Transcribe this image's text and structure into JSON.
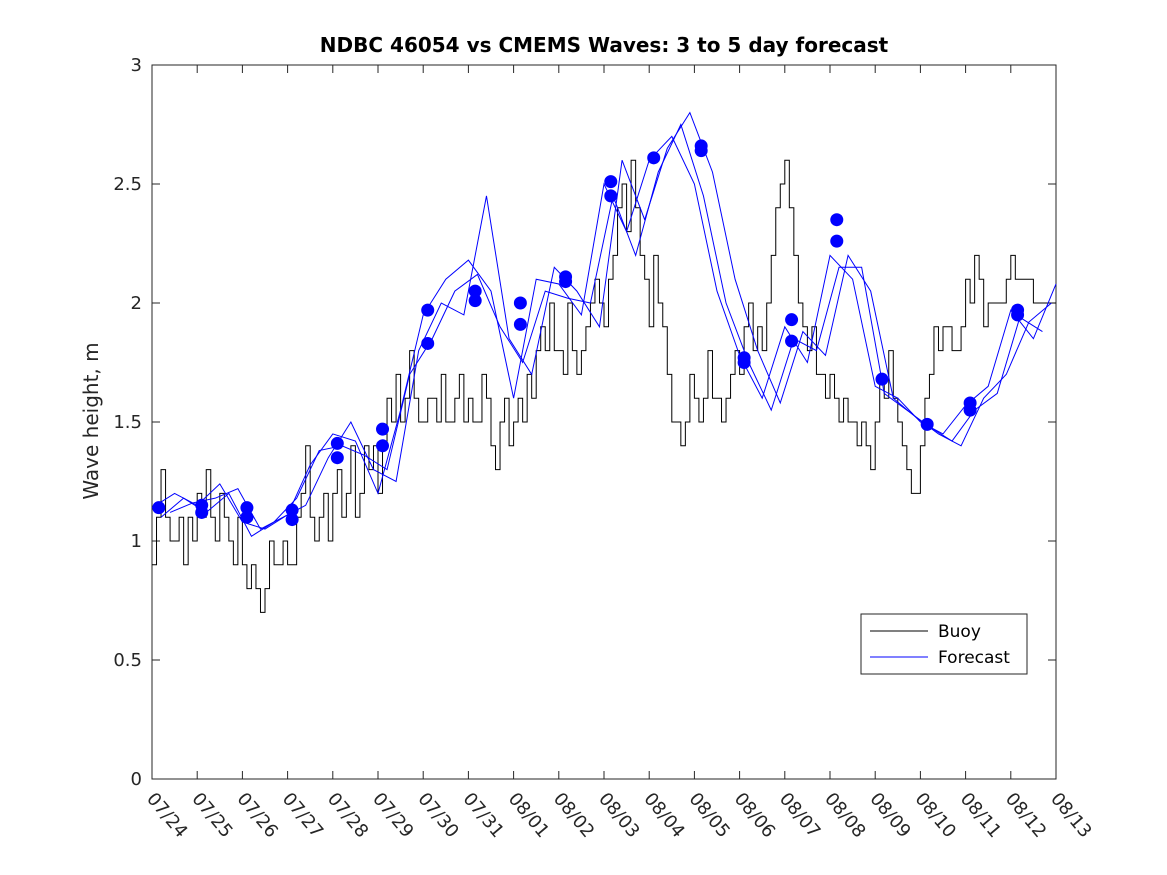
{
  "chart_data": {
    "type": "line",
    "title": "NDBC 46054 vs CMEMS Waves: 3 to 5 day forecast",
    "xlabel": "",
    "ylabel": "Wave height, m",
    "x_ticks": [
      "07/24",
      "07/25",
      "07/26",
      "07/27",
      "07/28",
      "07/29",
      "07/30",
      "07/31",
      "08/01",
      "08/02",
      "08/03",
      "08/04",
      "08/05",
      "08/06",
      "08/07",
      "08/08",
      "08/09",
      "08/10",
      "08/11",
      "08/12",
      "08/13"
    ],
    "xlim": [
      "07/24",
      "08/13"
    ],
    "ylim": [
      0,
      3
    ],
    "y_ticks": [
      "0",
      "0.5",
      "1",
      "1.5",
      "2",
      "2.5",
      "3"
    ],
    "legend": {
      "position": "lower-right",
      "entries": [
        "Buoy",
        "Forecast"
      ]
    },
    "colors": {
      "buoy": "#000000",
      "forecast": "#0000ff"
    },
    "series": [
      {
        "name": "Buoy",
        "step": true,
        "x": [
          0,
          0.1,
          0.2,
          0.3,
          0.4,
          0.5,
          0.6,
          0.7,
          0.8,
          0.9,
          1.0,
          1.1,
          1.2,
          1.3,
          1.4,
          1.5,
          1.6,
          1.7,
          1.8,
          1.9,
          2.0,
          2.1,
          2.2,
          2.3,
          2.4,
          2.5,
          2.6,
          2.7,
          2.8,
          2.9,
          3.0,
          3.1,
          3.2,
          3.3,
          3.4,
          3.5,
          3.6,
          3.7,
          3.8,
          3.9,
          4.0,
          4.1,
          4.2,
          4.3,
          4.4,
          4.5,
          4.6,
          4.7,
          4.8,
          4.9,
          5.0,
          5.1,
          5.2,
          5.3,
          5.4,
          5.5,
          5.6,
          5.7,
          5.8,
          5.9,
          6.0,
          6.1,
          6.2,
          6.3,
          6.4,
          6.5,
          6.6,
          6.7,
          6.8,
          6.9,
          7.0,
          7.1,
          7.2,
          7.3,
          7.4,
          7.5,
          7.6,
          7.7,
          7.8,
          7.9,
          8.0,
          8.1,
          8.2,
          8.3,
          8.4,
          8.5,
          8.6,
          8.7,
          8.8,
          8.9,
          9.0,
          9.1,
          9.2,
          9.3,
          9.4,
          9.5,
          9.6,
          9.7,
          9.8,
          9.9,
          10.0,
          10.1,
          10.2,
          10.3,
          10.4,
          10.5,
          10.6,
          10.7,
          10.8,
          10.9,
          11.0,
          11.1,
          11.2,
          11.3,
          11.4,
          11.5,
          11.6,
          11.7,
          11.8,
          11.9,
          12.0,
          12.1,
          12.2,
          12.3,
          12.4,
          12.5,
          12.6,
          12.7,
          12.8,
          12.9,
          13.0,
          13.1,
          13.2,
          13.3,
          13.4,
          13.5,
          13.6,
          13.7,
          13.8,
          13.9,
          14.0,
          14.1,
          14.2,
          14.3,
          14.4,
          14.5,
          14.6,
          14.7,
          14.8,
          14.9,
          15.0,
          15.1,
          15.2,
          15.3,
          15.4,
          15.5,
          15.6,
          15.7,
          15.8,
          15.9,
          16.0,
          16.1,
          16.2,
          16.3,
          16.4,
          16.5,
          16.6,
          16.7,
          16.8,
          16.9,
          17.0,
          17.1,
          17.2,
          17.3,
          17.4,
          17.5,
          17.6,
          17.7,
          17.8,
          17.9,
          18.0,
          18.1,
          18.2,
          18.3,
          18.4,
          18.5,
          18.6,
          18.7,
          18.8,
          18.9,
          19.0,
          19.1,
          19.2,
          19.3,
          19.4,
          19.5,
          19.6,
          19.7,
          19.8,
          19.9,
          20.0
        ],
        "values": [
          0.9,
          1.1,
          1.3,
          1.1,
          1.0,
          1.0,
          1.1,
          0.9,
          1.1,
          1.0,
          1.2,
          1.1,
          1.3,
          1.1,
          1.0,
          1.2,
          1.1,
          1.0,
          0.9,
          1.1,
          0.9,
          0.8,
          0.9,
          0.8,
          0.7,
          0.8,
          1.0,
          0.9,
          0.9,
          1.0,
          0.9,
          0.9,
          1.1,
          1.2,
          1.4,
          1.1,
          1.0,
          1.1,
          1.2,
          1.0,
          1.2,
          1.3,
          1.1,
          1.2,
          1.4,
          1.1,
          1.2,
          1.4,
          1.3,
          1.4,
          1.2,
          1.4,
          1.6,
          1.5,
          1.7,
          1.5,
          1.6,
          1.8,
          1.6,
          1.5,
          1.5,
          1.6,
          1.6,
          1.5,
          1.7,
          1.5,
          1.5,
          1.6,
          1.7,
          1.5,
          1.6,
          1.5,
          1.5,
          1.7,
          1.6,
          1.4,
          1.3,
          1.5,
          1.6,
          1.4,
          1.5,
          1.6,
          1.5,
          1.7,
          1.6,
          1.8,
          1.9,
          1.8,
          2.0,
          1.8,
          1.8,
          1.7,
          2.0,
          1.8,
          1.7,
          1.8,
          1.9,
          2.0,
          2.1,
          2.0,
          1.9,
          2.1,
          2.2,
          2.4,
          2.5,
          2.3,
          2.6,
          2.4,
          2.2,
          2.1,
          1.9,
          2.2,
          2.0,
          1.9,
          1.7,
          1.5,
          1.5,
          1.4,
          1.5,
          1.7,
          1.6,
          1.5,
          1.6,
          1.8,
          1.6,
          1.6,
          1.5,
          1.6,
          1.7,
          1.8,
          1.7,
          1.9,
          2.0,
          1.8,
          1.9,
          1.8,
          2.0,
          2.2,
          2.4,
          2.5,
          2.6,
          2.4,
          2.2,
          2.0,
          1.9,
          1.8,
          1.9,
          1.7,
          1.7,
          1.6,
          1.7,
          1.6,
          1.5,
          1.6,
          1.5,
          1.5,
          1.4,
          1.5,
          1.4,
          1.3,
          1.5,
          1.7,
          1.6,
          1.8,
          1.6,
          1.5,
          1.4,
          1.3,
          1.2,
          1.2,
          1.4,
          1.6,
          1.7,
          1.9,
          1.8,
          1.9,
          1.9,
          1.8,
          1.8,
          1.9,
          2.1,
          2.0,
          2.2,
          2.1,
          1.9,
          2.0,
          2.0,
          2.0,
          2.0,
          2.1,
          2.2,
          2.1,
          2.1,
          2.1,
          2.1,
          2.0,
          2.0,
          2.0,
          2.0,
          2.0,
          2.0
        ]
      },
      {
        "name": "Forecast",
        "runs": [
          {
            "x": [
              0,
              0.5,
              1,
              1.5,
              2,
              2.5,
              3,
              3.5,
              4,
              4.5,
              5,
              5.5,
              6,
              6.5,
              7,
              7.5,
              8,
              8.5,
              9,
              9.5,
              10,
              10.5,
              11,
              11.5,
              12,
              12.5,
              13,
              13.5,
              14,
              14.5,
              15,
              15.5,
              16,
              16.5,
              17,
              17.5,
              18,
              18.5,
              19,
              19.5,
              20
            ],
            "values": [
              1.14,
              1.2,
              1.15,
              1.24,
              1.08,
              1.05,
              1.11,
              1.32,
              1.45,
              1.42,
              1.2,
              1.55,
              1.95,
              2.1,
              2.18,
              2.05,
              1.6,
              2.1,
              2.08,
              1.95,
              2.5,
              2.3,
              2.6,
              2.7,
              2.5,
              2.05,
              1.78,
              1.6,
              1.9,
              1.75,
              2.2,
              2.1,
              1.65,
              1.6,
              1.5,
              1.45,
              1.57,
              1.65,
              1.97,
              1.85,
              2.08
            ]
          },
          {
            "x": [
              0.2,
              0.7,
              1.2,
              1.7,
              2.2,
              2.7,
              3.2,
              3.7,
              4.2,
              4.7,
              5.2,
              5.7,
              6.2,
              6.7,
              7.2,
              7.7,
              8.2,
              8.7,
              9.2,
              9.7,
              10.2,
              10.7,
              11.2,
              11.7,
              12.2,
              12.7,
              13.2,
              13.7,
              14.2,
              14.7,
              15.2,
              15.7,
              16.2,
              16.7,
              17.2,
              17.7,
              18.2,
              18.7,
              19.2,
              19.7
            ],
            "values": [
              1.1,
              1.18,
              1.12,
              1.2,
              1.02,
              1.08,
              1.18,
              1.38,
              1.4,
              1.36,
              1.3,
              1.7,
              1.85,
              2.05,
              2.12,
              1.9,
              1.75,
              2.05,
              2.02,
              2.0,
              2.45,
              2.2,
              2.55,
              2.75,
              2.45,
              2.0,
              1.75,
              1.55,
              1.85,
              1.8,
              2.15,
              2.15,
              1.62,
              1.55,
              1.48,
              1.42,
              1.55,
              1.62,
              1.94,
              1.88
            ]
          },
          {
            "x": [
              0.4,
              0.9,
              1.4,
              1.9,
              2.4,
              2.9,
              3.4,
              3.9,
              4.4,
              4.9,
              5.4,
              5.9,
              6.4,
              6.9,
              7.4,
              7.9,
              8.4,
              8.9,
              9.4,
              9.9,
              10.4,
              10.9,
              11.4,
              11.9,
              12.4,
              12.9,
              13.4,
              13.9,
              14.4,
              14.9,
              15.4,
              15.9,
              16.4,
              16.9,
              17.4,
              17.9,
              18.4,
              18.9,
              19.4,
              19.9
            ],
            "values": [
              1.12,
              1.16,
              1.18,
              1.22,
              1.05,
              1.1,
              1.15,
              1.35,
              1.5,
              1.3,
              1.25,
              1.8,
              2.0,
              1.95,
              2.45,
              1.85,
              1.7,
              2.15,
              2.05,
              1.9,
              2.6,
              2.35,
              2.65,
              2.8,
              2.55,
              2.1,
              1.8,
              1.58,
              1.88,
              1.78,
              2.2,
              2.05,
              1.6,
              1.52,
              1.45,
              1.4,
              1.6,
              1.7,
              1.92,
              2.0
            ]
          }
        ],
        "markers_x": [
          0.15,
          1.1,
          1.1,
          2.1,
          2.1,
          3.1,
          3.1,
          4.1,
          4.1,
          5.1,
          5.1,
          6.1,
          6.1,
          7.15,
          7.15,
          8.15,
          8.15,
          9.15,
          9.15,
          10.15,
          10.15,
          11.1,
          12.15,
          12.15,
          13.1,
          13.1,
          14.15,
          14.15,
          15.15,
          15.15,
          16.15,
          17.15,
          18.1,
          18.1,
          19.15,
          19.15
        ],
        "markers_y": [
          1.14,
          1.15,
          1.12,
          1.14,
          1.1,
          1.13,
          1.09,
          1.41,
          1.35,
          1.47,
          1.4,
          1.97,
          1.83,
          2.05,
          2.01,
          2.0,
          1.91,
          2.11,
          2.09,
          2.51,
          2.45,
          2.61,
          2.66,
          2.64,
          1.77,
          1.75,
          1.93,
          1.84,
          2.35,
          2.26,
          1.68,
          1.49,
          1.58,
          1.55,
          1.97,
          1.95
        ]
      }
    ]
  }
}
